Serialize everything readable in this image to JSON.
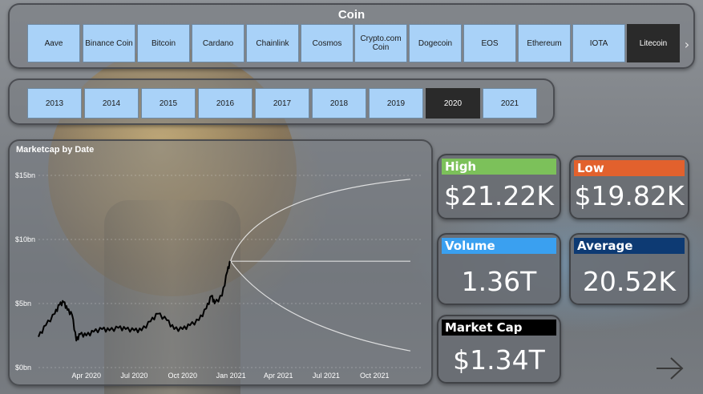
{
  "coin_slicer": {
    "title": "Coin",
    "options": [
      "Aave",
      "Binance Coin",
      "Bitcoin",
      "Cardano",
      "Chainlink",
      "Cosmos",
      "Crypto.com Coin",
      "Dogecoin",
      "EOS",
      "Ethereum",
      "IOTA",
      "Litecoin"
    ],
    "selected": "Litecoin",
    "next_icon": "chevron-right-icon"
  },
  "year_slicer": {
    "options": [
      "2013",
      "2014",
      "2015",
      "2016",
      "2017",
      "2018",
      "2019",
      "2020",
      "2021"
    ],
    "selected": "2020"
  },
  "chart_data": {
    "type": "line",
    "title": "Marketcap by Date",
    "xlabel": "",
    "ylabel": "",
    "y_ticks": [
      "$0bn",
      "$5bn",
      "$10bn",
      "$15bn"
    ],
    "x_ticks": [
      "Apr 2020",
      "Jul 2020",
      "Oct 2020",
      "Jan 2021",
      "Apr 2021",
      "Jul 2021",
      "Oct 2021"
    ],
    "ylim": [
      0,
      15
    ],
    "xlim": [
      "2020-01-01",
      "2021-12-31"
    ],
    "grid": true,
    "series": [
      {
        "values": [
          [
            "2020-01-01",
            2.4
          ],
          [
            "2020-01-15",
            3.3
          ],
          [
            "2020-02-01",
            4.2
          ],
          [
            "2020-02-10",
            4.9
          ],
          [
            "2020-02-18",
            5.1
          ],
          [
            "2020-02-25",
            4.5
          ],
          [
            "2020-03-05",
            4.1
          ],
          [
            "2020-03-13",
            2.1
          ],
          [
            "2020-03-20",
            2.6
          ],
          [
            "2020-04-01",
            2.5
          ],
          [
            "2020-04-15",
            2.8
          ],
          [
            "2020-05-01",
            3.0
          ],
          [
            "2020-05-15",
            2.9
          ],
          [
            "2020-06-01",
            3.1
          ],
          [
            "2020-06-15",
            3.0
          ],
          [
            "2020-07-01",
            2.9
          ],
          [
            "2020-07-15",
            2.9
          ],
          [
            "2020-08-01",
            3.6
          ],
          [
            "2020-08-15",
            4.2
          ],
          [
            "2020-09-01",
            3.7
          ],
          [
            "2020-09-15",
            3.0
          ],
          [
            "2020-10-01",
            3.0
          ],
          [
            "2020-10-15",
            3.3
          ],
          [
            "2020-11-01",
            3.7
          ],
          [
            "2020-11-15",
            4.6
          ],
          [
            "2020-11-25",
            5.6
          ],
          [
            "2020-12-01",
            5.0
          ],
          [
            "2020-12-15",
            5.6
          ],
          [
            "2020-12-25",
            7.5
          ],
          [
            "2020-12-31",
            8.3
          ]
        ]
      }
    ],
    "forecast": {
      "line_value": 8.3,
      "upper_end": 15.5,
      "lower_end": 1.3,
      "end_date": "2021-12-31"
    }
  },
  "kpis": [
    {
      "label": "High",
      "value": "$21.22K",
      "color": "#7cc15a"
    },
    {
      "label": "Low",
      "value": "$19.82K",
      "color": "#e2612d"
    },
    {
      "label": "Volume",
      "value": "1.36T",
      "color": "#3aa0f0"
    },
    {
      "label": "Average",
      "value": "20.52K",
      "color": "#0d3a73"
    },
    {
      "label": "Market Cap",
      "value": "$1.34T",
      "color": "#000000"
    }
  ],
  "navigation": {
    "next_icon": "arrow-right-icon"
  }
}
